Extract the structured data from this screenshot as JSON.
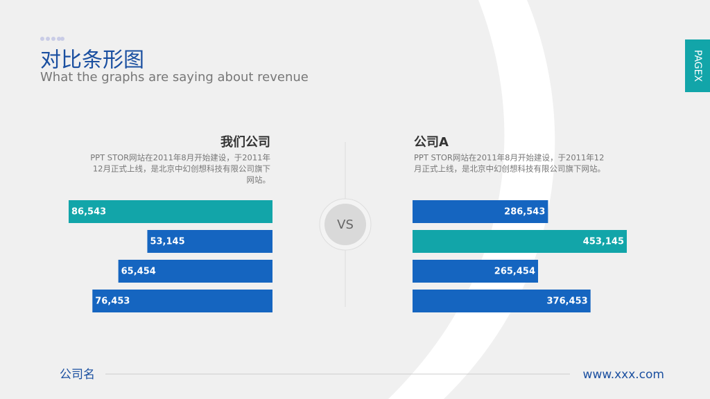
{
  "header": {
    "title": "对比条形图",
    "subtitle": "What the graphs are saying about revenue"
  },
  "tab": "PAGEX",
  "vs": "VS",
  "footer": {
    "company": "公司名",
    "url": "www.xxx.com"
  },
  "chart_data": [
    {
      "type": "bar",
      "title": "我们公司",
      "description": [
        "PPT STOR网站在2011年8月开始建设，于2011年",
        "12月正式上线，是北京中幻创想科技有限公司旗下",
        "网站。"
      ],
      "values": [
        86543,
        53145,
        65454,
        76453
      ],
      "value_labels": [
        "86,543",
        "53,145",
        "65,454",
        "76,453"
      ],
      "colors": [
        "#12a5a9",
        "#1565c0",
        "#1565c0",
        "#1565c0"
      ]
    },
    {
      "type": "bar",
      "title": "公司A",
      "description": [
        "PPT STOR网站在2011年8月开始建设，于2011年12",
        "月正式上线，是北京中幻创想科技有限公司旗下网站。"
      ],
      "values": [
        286543,
        453145,
        265454,
        376453
      ],
      "value_labels": [
        "286,543",
        "453,145",
        "265,454",
        "376,453"
      ],
      "colors": [
        "#1565c0",
        "#12a5a9",
        "#1565c0",
        "#1565c0"
      ]
    }
  ]
}
